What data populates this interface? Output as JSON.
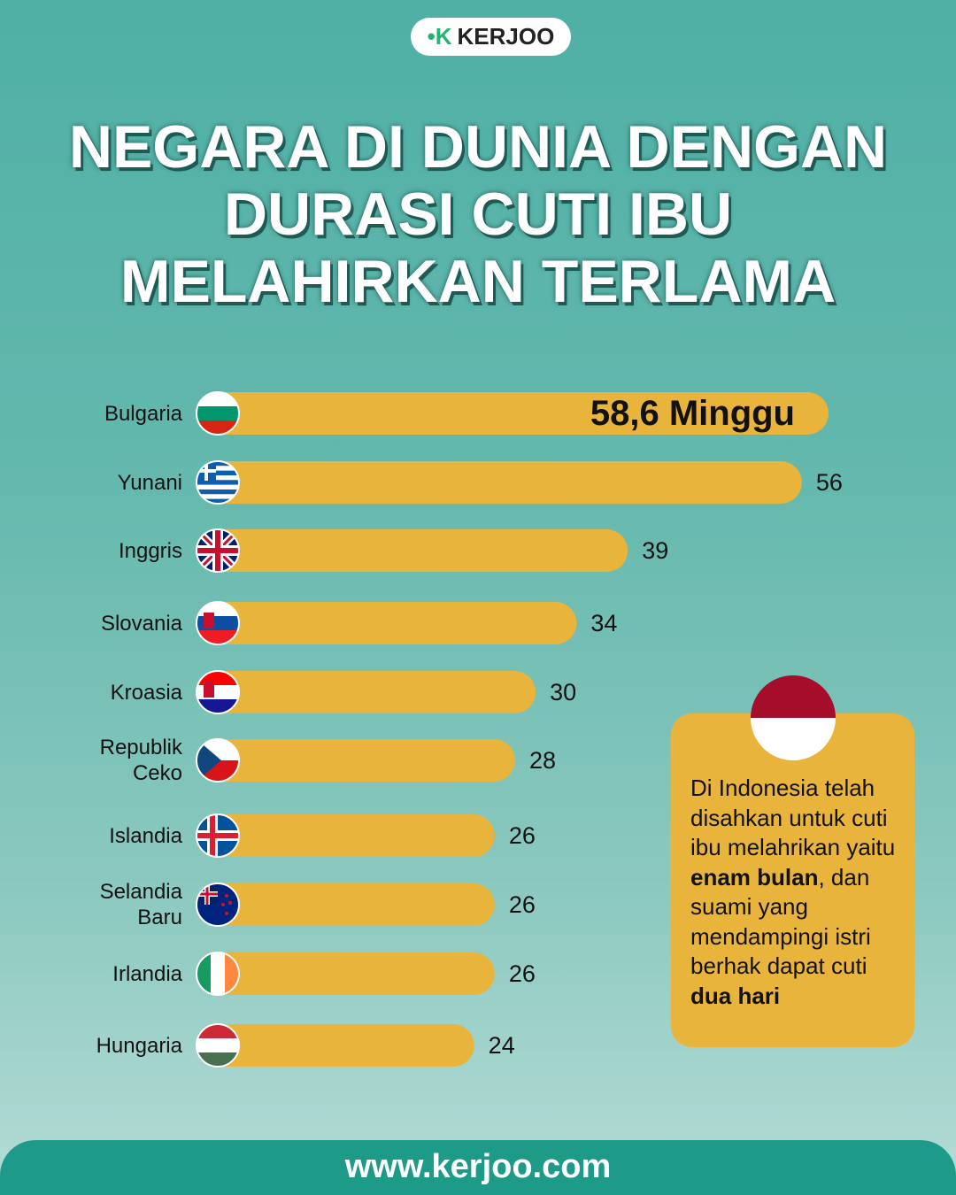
{
  "logo": "KERJOO",
  "website": "www.kerjoo.com",
  "note": {
    "parts": [
      {
        "text": "Di Indonesia telah disahkan untuk cuti ibu melahrikan yaitu ",
        "bold": false
      },
      {
        "text": "enam bulan",
        "bold": true
      },
      {
        "text": ", dan suami yang mendampingi istri berhak dapat cuti ",
        "bold": false
      },
      {
        "text": "dua hari",
        "bold": true
      }
    ]
  },
  "chart_data": {
    "type": "bar",
    "orientation": "horizontal",
    "title": "NEGARA DI DUNIA DENGAN\nDURASI CUTI IBU\nMELAHIRKAN TERLAMA",
    "categories": [
      "Bulgaria",
      "Yunani",
      "Inggris",
      "Slovania",
      "Kroasia",
      "Republik\nCeko",
      "Islandia",
      "Selandia\nBaru",
      "Irlandia",
      "Hungaria"
    ],
    "values": [
      58.6,
      56,
      39,
      34,
      30,
      28,
      26,
      26,
      26,
      24
    ],
    "value_labels": [
      "58,6 Minggu",
      "56",
      "39",
      "34",
      "30",
      "28",
      "26",
      "26",
      "26",
      "24"
    ],
    "color": "#e9b43c"
  }
}
